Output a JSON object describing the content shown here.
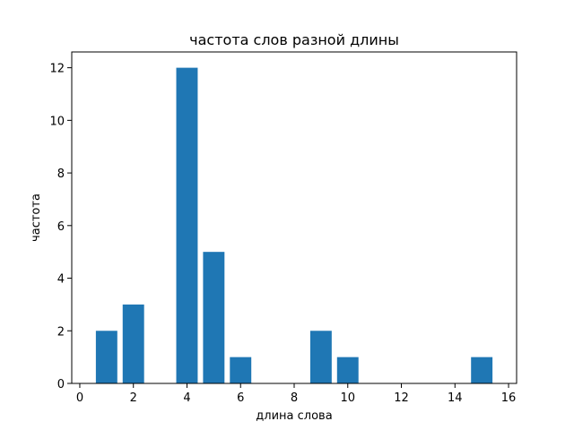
{
  "chart_data": {
    "type": "bar",
    "title": "частота слов разной длины",
    "xlabel": "длина слова",
    "ylabel": "частота",
    "x": [
      1,
      2,
      4,
      5,
      6,
      9,
      10,
      15
    ],
    "values": [
      2,
      3,
      12,
      5,
      1,
      2,
      1,
      1
    ],
    "bar_width": 0.8,
    "xlim": [
      -0.3,
      16.3
    ],
    "ylim": [
      0,
      12.6
    ],
    "xticks": [
      0,
      2,
      4,
      6,
      8,
      10,
      12,
      14,
      16
    ],
    "yticks": [
      0,
      2,
      4,
      6,
      8,
      10,
      12
    ],
    "grid": false,
    "bar_color": "#1f77b4"
  }
}
